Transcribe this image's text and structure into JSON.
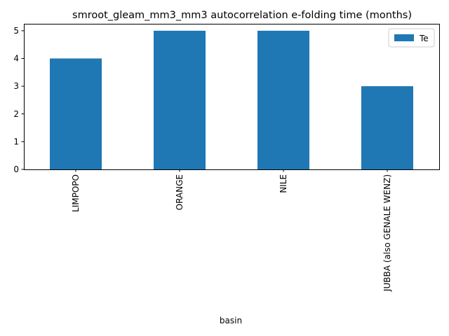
{
  "chart_data": {
    "type": "bar",
    "title": "smroot_gleam_mm3_mm3 autocorrelation e-folding time (months)",
    "xlabel": "basin",
    "ylabel": "",
    "categories": [
      "LIMPOPO",
      "ORANGE",
      "NILE",
      "JUBBA (also GENALE WENZ)"
    ],
    "series": [
      {
        "name": "Te",
        "values": [
          4,
          5,
          5,
          3
        ]
      }
    ],
    "ylim": [
      0,
      5.25
    ],
    "yticks": [
      "0",
      "1",
      "2",
      "3",
      "4",
      "5"
    ],
    "grid": false,
    "legend_position": "top-right",
    "colors": {
      "bar": "#1f77b4",
      "axis": "#000000",
      "legend_border": "#cccccc"
    }
  }
}
